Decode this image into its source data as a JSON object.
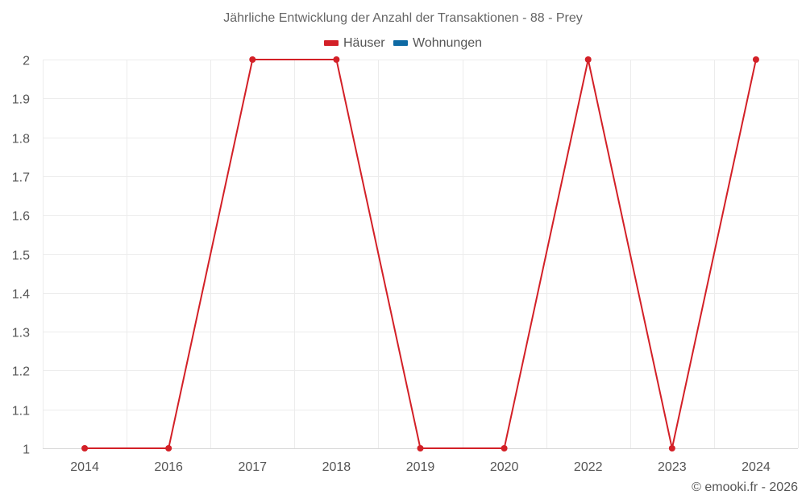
{
  "chart_data": {
    "type": "line",
    "title": "Jährliche Entwicklung der Anzahl der Transaktionen - 88 - Prey",
    "xlabel": "",
    "ylabel": "",
    "categories": [
      "2014",
      "2016",
      "2017",
      "2018",
      "2019",
      "2020",
      "2022",
      "2023",
      "2024"
    ],
    "series": [
      {
        "name": "Häuser",
        "color": "#d32027",
        "values": [
          1,
          1,
          2,
          2,
          1,
          1,
          2,
          1,
          2
        ]
      },
      {
        "name": "Wohnungen",
        "color": "#0e6aa4",
        "values": []
      }
    ],
    "ylim": [
      1,
      2
    ],
    "yticks": [
      "1",
      "1.1",
      "1.2",
      "1.3",
      "1.4",
      "1.5",
      "1.6",
      "1.7",
      "1.8",
      "1.9",
      "2"
    ],
    "grid": true,
    "legend_position": "top"
  },
  "legend": [
    {
      "label": "Häuser",
      "color": "#d32027"
    },
    {
      "label": "Wohnungen",
      "color": "#0e6aa4"
    }
  ],
  "credit": "© emooki.fr - 2026"
}
